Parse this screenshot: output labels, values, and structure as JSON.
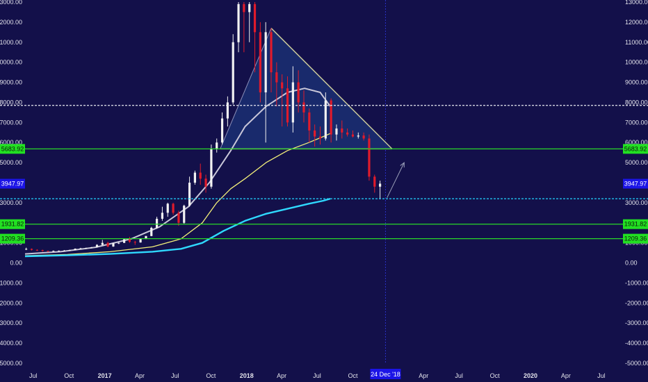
{
  "chart_data": {
    "type": "candlestick",
    "title": "",
    "xlabel": "",
    "ylabel": "",
    "ylim": [
      -5200,
      13000
    ],
    "y_ticks": [
      13000,
      12000,
      11000,
      10000,
      9000,
      8000,
      7000,
      6000,
      5000,
      4000,
      3000,
      2000,
      1000,
      0,
      -1000,
      -2000,
      -3000,
      -4000,
      -5000
    ],
    "y_tick_labels": [
      "13000.00",
      "12000.00",
      "11000.00",
      "10000.00",
      "9000.00",
      "8000.00",
      "7000.00",
      "6000.00",
      "5000.00",
      "4000.00",
      "3000.00",
      "2000.00",
      "1000.00",
      "0.00",
      "-1000.00",
      "-2000.00",
      "-3000.00",
      "-4000.00",
      "-5000.00"
    ],
    "x_ticks": [
      {
        "label": "Jul",
        "date": "2016-07-01",
        "bold": false
      },
      {
        "label": "Oct",
        "date": "2016-10-01",
        "bold": false
      },
      {
        "label": "2017",
        "date": "2017-01-01",
        "bold": true
      },
      {
        "label": "Apr",
        "date": "2017-04-01",
        "bold": false
      },
      {
        "label": "Jul",
        "date": "2017-07-01",
        "bold": false
      },
      {
        "label": "Oct",
        "date": "2017-10-01",
        "bold": false
      },
      {
        "label": "2018",
        "date": "2018-01-01",
        "bold": true
      },
      {
        "label": "Apr",
        "date": "2018-04-01",
        "bold": false
      },
      {
        "label": "Jul",
        "date": "2018-07-01",
        "bold": false
      },
      {
        "label": "Oct",
        "date": "2018-10-01",
        "bold": false
      },
      {
        "label": "Apr",
        "date": "2019-04-01",
        "bold": false
      },
      {
        "label": "Jul",
        "date": "2019-07-01",
        "bold": false
      },
      {
        "label": "Oct",
        "date": "2019-10-01",
        "bold": false
      },
      {
        "label": "2020",
        "date": "2020-01-01",
        "bold": true
      },
      {
        "label": "Apr",
        "date": "2020-04-01",
        "bold": false
      },
      {
        "label": "Jul",
        "date": "2020-07-01",
        "bold": false
      }
    ],
    "x_range": [
      "2016-06-10",
      "2020-08-15"
    ],
    "cursor_date_label": "24 Dec '18",
    "cursor_date": "2018-12-24",
    "candles": [
      {
        "t": "2016-06-13",
        "o": 690,
        "h": 760,
        "l": 640,
        "c": 700
      },
      {
        "t": "2016-06-27",
        "o": 700,
        "h": 720,
        "l": 620,
        "c": 650
      },
      {
        "t": "2016-07-11",
        "o": 650,
        "h": 680,
        "l": 600,
        "c": 640
      },
      {
        "t": "2016-07-25",
        "o": 640,
        "h": 660,
        "l": 560,
        "c": 600
      },
      {
        "t": "2016-08-08",
        "o": 600,
        "h": 610,
        "l": 540,
        "c": 590
      },
      {
        "t": "2016-08-22",
        "o": 590,
        "h": 620,
        "l": 570,
        "c": 600
      },
      {
        "t": "2016-09-05",
        "o": 600,
        "h": 620,
        "l": 590,
        "c": 610
      },
      {
        "t": "2016-09-19",
        "o": 610,
        "h": 640,
        "l": 600,
        "c": 620
      },
      {
        "t": "2016-10-03",
        "o": 620,
        "h": 660,
        "l": 610,
        "c": 640
      },
      {
        "t": "2016-10-17",
        "o": 640,
        "h": 720,
        "l": 630,
        "c": 710
      },
      {
        "t": "2016-10-31",
        "o": 710,
        "h": 750,
        "l": 690,
        "c": 730
      },
      {
        "t": "2016-11-14",
        "o": 730,
        "h": 760,
        "l": 700,
        "c": 740
      },
      {
        "t": "2016-11-28",
        "o": 740,
        "h": 790,
        "l": 730,
        "c": 780
      },
      {
        "t": "2016-12-12",
        "o": 780,
        "h": 930,
        "l": 770,
        "c": 900
      },
      {
        "t": "2016-12-26",
        "o": 900,
        "h": 1150,
        "l": 880,
        "c": 1000
      },
      {
        "t": "2017-01-09",
        "o": 1000,
        "h": 1050,
        "l": 780,
        "c": 820
      },
      {
        "t": "2017-01-23",
        "o": 820,
        "h": 1000,
        "l": 800,
        "c": 980
      },
      {
        "t": "2017-02-06",
        "o": 980,
        "h": 1020,
        "l": 940,
        "c": 1000
      },
      {
        "t": "2017-02-20",
        "o": 1000,
        "h": 1200,
        "l": 990,
        "c": 1180
      },
      {
        "t": "2017-03-06",
        "o": 1180,
        "h": 1300,
        "l": 1000,
        "c": 1050
      },
      {
        "t": "2017-03-20",
        "o": 1050,
        "h": 1100,
        "l": 900,
        "c": 1020
      },
      {
        "t": "2017-04-03",
        "o": 1020,
        "h": 1220,
        "l": 1010,
        "c": 1200
      },
      {
        "t": "2017-04-17",
        "o": 1200,
        "h": 1350,
        "l": 1180,
        "c": 1340
      },
      {
        "t": "2017-05-01",
        "o": 1340,
        "h": 1800,
        "l": 1330,
        "c": 1750
      },
      {
        "t": "2017-05-15",
        "o": 1750,
        "h": 2300,
        "l": 1700,
        "c": 2200
      },
      {
        "t": "2017-05-29",
        "o": 2200,
        "h": 2800,
        "l": 2100,
        "c": 2500
      },
      {
        "t": "2017-06-12",
        "o": 2500,
        "h": 3000,
        "l": 2300,
        "c": 2950
      },
      {
        "t": "2017-06-26",
        "o": 2950,
        "h": 3000,
        "l": 2400,
        "c": 2500
      },
      {
        "t": "2017-07-10",
        "o": 2500,
        "h": 2600,
        "l": 1850,
        "c": 2000
      },
      {
        "t": "2017-07-24",
        "o": 2000,
        "h": 2900,
        "l": 1950,
        "c": 2850
      },
      {
        "t": "2017-08-07",
        "o": 2850,
        "h": 4300,
        "l": 2800,
        "c": 4000
      },
      {
        "t": "2017-08-21",
        "o": 4000,
        "h": 4600,
        "l": 3900,
        "c": 4500
      },
      {
        "t": "2017-09-04",
        "o": 4500,
        "h": 4950,
        "l": 3900,
        "c": 4200
      },
      {
        "t": "2017-09-18",
        "o": 4200,
        "h": 4400,
        "l": 3500,
        "c": 3800
      },
      {
        "t": "2017-10-02",
        "o": 3800,
        "h": 5900,
        "l": 3700,
        "c": 5700
      },
      {
        "t": "2017-10-16",
        "o": 5700,
        "h": 6200,
        "l": 5500,
        "c": 6000
      },
      {
        "t": "2017-10-30",
        "o": 6000,
        "h": 7500,
        "l": 5900,
        "c": 7200
      },
      {
        "t": "2017-11-13",
        "o": 7200,
        "h": 8300,
        "l": 6800,
        "c": 8000
      },
      {
        "t": "2017-11-27",
        "o": 8000,
        "h": 11400,
        "l": 7900,
        "c": 11000
      },
      {
        "t": "2017-12-11",
        "o": 11000,
        "h": 13000,
        "l": 10500,
        "c": 12900
      },
      {
        "t": "2017-12-25",
        "o": 12900,
        "h": 13000,
        "l": 10500,
        "c": 12500
      },
      {
        "t": "2018-01-08",
        "o": 12500,
        "h": 13000,
        "l": 11000,
        "c": 12900
      },
      {
        "t": "2018-01-22",
        "o": 12900,
        "h": 13000,
        "l": 9500,
        "c": 11500
      },
      {
        "t": "2018-02-05",
        "o": 11500,
        "h": 12000,
        "l": 8000,
        "c": 8500
      },
      {
        "t": "2018-02-19",
        "o": 8500,
        "h": 12000,
        "l": 6000,
        "c": 11500
      },
      {
        "t": "2018-03-05",
        "o": 11500,
        "h": 11700,
        "l": 8500,
        "c": 9500
      },
      {
        "t": "2018-03-19",
        "o": 9500,
        "h": 10000,
        "l": 7800,
        "c": 9000
      },
      {
        "t": "2018-04-02",
        "o": 9000,
        "h": 9400,
        "l": 6800,
        "c": 8700
      },
      {
        "t": "2018-04-16",
        "o": 8700,
        "h": 9300,
        "l": 6800,
        "c": 7000
      },
      {
        "t": "2018-04-30",
        "o": 7000,
        "h": 9800,
        "l": 6500,
        "c": 9000
      },
      {
        "t": "2018-05-14",
        "o": 9000,
        "h": 9600,
        "l": 7500,
        "c": 8000
      },
      {
        "t": "2018-05-28",
        "o": 8000,
        "h": 8600,
        "l": 7000,
        "c": 7500
      },
      {
        "t": "2018-06-11",
        "o": 7500,
        "h": 7700,
        "l": 6000,
        "c": 6600
      },
      {
        "t": "2018-06-25",
        "o": 6600,
        "h": 6900,
        "l": 5800,
        "c": 6300
      },
      {
        "t": "2018-07-09",
        "o": 6300,
        "h": 6800,
        "l": 5900,
        "c": 6200
      },
      {
        "t": "2018-07-23",
        "o": 6200,
        "h": 8500,
        "l": 6100,
        "c": 8100
      },
      {
        "t": "2018-08-06",
        "o": 8100,
        "h": 8200,
        "l": 6000,
        "c": 6400
      },
      {
        "t": "2018-08-20",
        "o": 6400,
        "h": 6900,
        "l": 6100,
        "c": 6700
      },
      {
        "t": "2018-09-03",
        "o": 6700,
        "h": 7100,
        "l": 6200,
        "c": 6500
      },
      {
        "t": "2018-09-17",
        "o": 6500,
        "h": 6700,
        "l": 6300,
        "c": 6400
      },
      {
        "t": "2018-10-01",
        "o": 6400,
        "h": 6600,
        "l": 6250,
        "c": 6300
      },
      {
        "t": "2018-10-15",
        "o": 6300,
        "h": 6500,
        "l": 6200,
        "c": 6350
      },
      {
        "t": "2018-10-29",
        "o": 6350,
        "h": 6500,
        "l": 6100,
        "c": 6200
      },
      {
        "t": "2018-11-12",
        "o": 6200,
        "h": 6400,
        "l": 4100,
        "c": 4300
      },
      {
        "t": "2018-11-26",
        "o": 4300,
        "h": 4400,
        "l": 3500,
        "c": 3800
      },
      {
        "t": "2018-12-10",
        "o": 3800,
        "h": 4100,
        "l": 3200,
        "c": 3950
      }
    ],
    "ma_white": [
      [
        0.0,
        450
      ],
      [
        0.25,
        560
      ],
      [
        0.5,
        780
      ],
      [
        0.75,
        1200
      ],
      [
        0.95,
        1800
      ],
      [
        1.15,
        2800
      ],
      [
        1.3,
        4000
      ],
      [
        1.45,
        5600
      ],
      [
        1.55,
        6800
      ],
      [
        1.7,
        7800
      ],
      [
        1.85,
        8500
      ],
      [
        1.97,
        8700
      ],
      [
        2.08,
        8500
      ],
      [
        2.15,
        7800
      ]
    ],
    "ma_yellow": [
      [
        0.0,
        360
      ],
      [
        0.3,
        420
      ],
      [
        0.6,
        560
      ],
      [
        0.9,
        800
      ],
      [
        1.1,
        1200
      ],
      [
        1.25,
        2000
      ],
      [
        1.35,
        3000
      ],
      [
        1.45,
        3700
      ],
      [
        1.55,
        4200
      ],
      [
        1.7,
        5000
      ],
      [
        1.85,
        5600
      ],
      [
        2.0,
        6000
      ],
      [
        2.1,
        6300
      ],
      [
        2.15,
        6450
      ]
    ],
    "ma_cyan": [
      [
        0.0,
        330
      ],
      [
        0.3,
        380
      ],
      [
        0.6,
        450
      ],
      [
        0.9,
        560
      ],
      [
        1.1,
        700
      ],
      [
        1.25,
        1000
      ],
      [
        1.4,
        1600
      ],
      [
        1.55,
        2100
      ],
      [
        1.7,
        2450
      ],
      [
        1.85,
        2700
      ],
      [
        2.0,
        2950
      ],
      [
        2.1,
        3100
      ],
      [
        2.15,
        3200
      ]
    ],
    "levels": [
      {
        "name": "resistance",
        "value": 7850,
        "color": "#e8e8f0",
        "style": "dashed",
        "label": ""
      },
      {
        "name": "neckline",
        "value": 5683.92,
        "color": "#29d829",
        "style": "solid",
        "label": "5683.92"
      },
      {
        "name": "ma-support",
        "value": 3200,
        "color": "#23d3ff",
        "style": "dashed",
        "label": ""
      },
      {
        "name": "support-1",
        "value": 1931.82,
        "color": "#29d829",
        "style": "solid",
        "label": "1931.82"
      },
      {
        "name": "support-2",
        "value": 1209.36,
        "color": "#29d829",
        "style": "solid",
        "label": "1209.36"
      }
    ],
    "price_label": {
      "value": 3947.97,
      "label": "3947.97",
      "color": "#1b14e6"
    },
    "triangle": {
      "apex": [
        "2018-03-05",
        11700
      ],
      "left_base": [
        "2017-10-25",
        5683.92
      ],
      "right_base": [
        "2019-01-10",
        5683.92
      ],
      "fill": "#1b2f72"
    },
    "arrow": {
      "from": [
        "2018-12-28",
        3250
      ],
      "to": [
        "2019-02-10",
        5000
      ]
    }
  }
}
